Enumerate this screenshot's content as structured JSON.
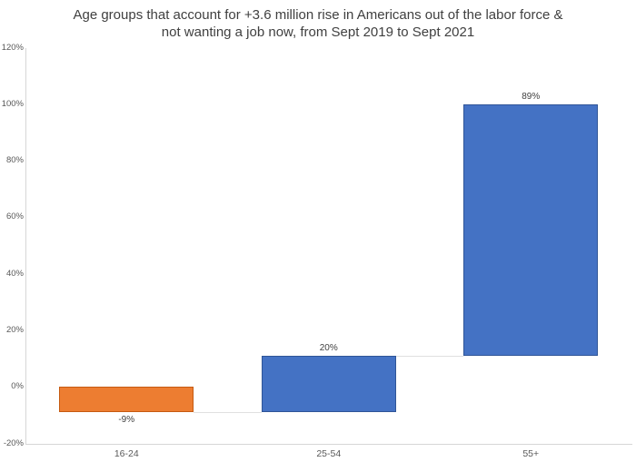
{
  "chart_data": {
    "type": "bar",
    "subtype": "waterfall",
    "title": "Age groups that account for +3.6 million rise in Americans out of the labor force & not wanting a job now, from Sept 2019 to Sept 2021",
    "title_lines": [
      "Age groups that account for +3.6 million rise in Americans out of the labor force &",
      "not wanting a job now, from Sept 2019 to Sept 2021"
    ],
    "categories": [
      "16-24",
      "25-54",
      "55+"
    ],
    "values": [
      -9,
      20,
      89
    ],
    "cumulative": [
      -9,
      11,
      100
    ],
    "data_labels": [
      "-9%",
      "20%",
      "89%"
    ],
    "xlabel": "",
    "ylabel": "",
    "ylim": [
      -20,
      120
    ],
    "ytick_step": 20,
    "yticks": [
      {
        "value": 120,
        "label": "120%"
      },
      {
        "value": 100,
        "label": "100%"
      },
      {
        "value": 80,
        "label": "80%"
      },
      {
        "value": 60,
        "label": "60%"
      },
      {
        "value": 40,
        "label": "40%"
      },
      {
        "value": 20,
        "label": "20%"
      },
      {
        "value": 0,
        "label": "0%"
      },
      {
        "value": -20,
        "label": "-20%"
      }
    ],
    "grid": false,
    "legend": "none",
    "colors": {
      "bar_fills": [
        "#ED7D31",
        "#4472C4",
        "#4472C4"
      ],
      "bar_borders": [
        "#C55A11",
        "#2F5597",
        "#2F5597"
      ],
      "axis_line": "#D6D6D6",
      "connector": "#E0E0E0",
      "title_text": "#404040",
      "tick_text": "#595959",
      "data_label_text": "#404040",
      "background": "#FFFFFF"
    }
  }
}
